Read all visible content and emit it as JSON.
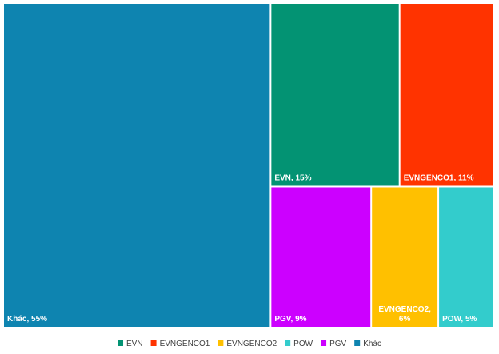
{
  "chart_data": {
    "type": "treemap",
    "items": [
      {
        "name": "Khác",
        "value": 55,
        "color": "#0E84B0",
        "label_lines": [
          "Khác, 55%"
        ]
      },
      {
        "name": "EVN",
        "value": 15,
        "color": "#039373",
        "label_lines": [
          "EVN, 15%"
        ]
      },
      {
        "name": "EVNGENCO1",
        "value": 11,
        "color": "#FF3300",
        "label_lines": [
          "EVNGENCO1, 11%"
        ]
      },
      {
        "name": "PGV",
        "value": 9,
        "color": "#CC00FF",
        "label_lines": [
          "PGV, 9%"
        ]
      },
      {
        "name": "EVNGENCO2",
        "value": 6,
        "color": "#FFC000",
        "label_lines": [
          "EVNGENCO2,",
          "6%"
        ]
      },
      {
        "name": "POW",
        "value": 5,
        "color": "#33CCCC",
        "label_lines": [
          "POW, 5%"
        ]
      }
    ],
    "legend": {
      "position": "bottom",
      "entries": [
        {
          "name": "EVN",
          "color": "#039373"
        },
        {
          "name": "EVNGENCO1",
          "color": "#FF3300"
        },
        {
          "name": "EVNGENCO2",
          "color": "#FFC000"
        },
        {
          "name": "POW",
          "color": "#33CCCC"
        },
        {
          "name": "PGV",
          "color": "#CC00FF"
        },
        {
          "name": "Khác",
          "color": "#0E84B0"
        }
      ]
    }
  }
}
